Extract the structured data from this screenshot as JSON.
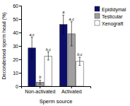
{
  "chart_data": {
    "type": "bar",
    "categories": [
      "Non-activated",
      "Activated"
    ],
    "series": [
      {
        "name": "Epididymal",
        "color": "#0d0d6b",
        "values": [
          28.5,
          46.0
        ],
        "errors": [
          8.0,
          7.0
        ],
        "annotations": [
          "a,c",
          "a"
        ]
      },
      {
        "name": "Testicular",
        "color": "#a0a0a0",
        "values": [
          3.0,
          39.0
        ],
        "errors": [
          1.5,
          9.0
        ],
        "annotations": [
          "b",
          "a,c"
        ]
      },
      {
        "name": "Xenograft",
        "color": "#ffffff",
        "values": [
          22.5,
          18.5
        ],
        "errors": [
          3.0,
          3.0
        ],
        "annotations": [
          "b,c",
          "b,c"
        ]
      }
    ],
    "xlabel": "Sperm source",
    "ylabel": "Decondensed sperm head (%)",
    "ylim": [
      0,
      60
    ],
    "yticks": [
      0,
      10,
      20,
      30,
      40,
      50,
      60
    ],
    "grid": false,
    "legend": "upper right"
  }
}
